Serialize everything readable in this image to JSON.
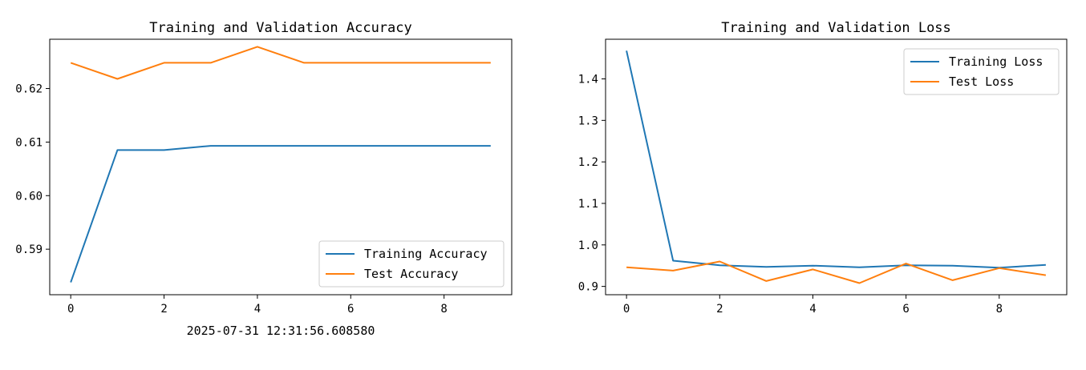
{
  "footer_text": "2025-07-31 12:31:56.608580",
  "chart_data": [
    {
      "type": "line",
      "title": "Training and Validation Accuracy",
      "xlabel": "",
      "ylabel": "",
      "x": [
        0,
        1,
        2,
        3,
        4,
        5,
        6,
        7,
        8,
        9
      ],
      "xticks": [
        "0",
        "2",
        "4",
        "6",
        "8"
      ],
      "yticks": [
        "0.59",
        "0.60",
        "0.61",
        "0.62"
      ],
      "xlim": [
        -0.45,
        9.45
      ],
      "ylim": [
        0.5815,
        0.6292
      ],
      "legend_position": "lower-right",
      "grid": false,
      "series": [
        {
          "name": "Training Accuracy",
          "color": "#1f77b4",
          "values": [
            0.5838,
            0.6085,
            0.6085,
            0.6093,
            0.6093,
            0.6093,
            0.6093,
            0.6093,
            0.6093,
            0.6093
          ]
        },
        {
          "name": "Test Accuracy",
          "color": "#ff7f0e",
          "values": [
            0.6248,
            0.6218,
            0.6248,
            0.6248,
            0.6278,
            0.6248,
            0.6248,
            0.6248,
            0.6248,
            0.6248
          ]
        }
      ]
    },
    {
      "type": "line",
      "title": "Training and Validation Loss",
      "xlabel": "",
      "ylabel": "",
      "x": [
        0,
        1,
        2,
        3,
        4,
        5,
        6,
        7,
        8,
        9
      ],
      "xticks": [
        "0",
        "2",
        "4",
        "6",
        "8"
      ],
      "yticks": [
        "0.9",
        "1.0",
        "1.1",
        "1.2",
        "1.3",
        "1.4"
      ],
      "xlim": [
        -0.45,
        9.45
      ],
      "ylim": [
        0.88,
        1.4955
      ],
      "legend_position": "upper-right",
      "grid": false,
      "series": [
        {
          "name": "Training Loss",
          "color": "#1f77b4",
          "values": [
            1.468,
            0.962,
            0.951,
            0.947,
            0.95,
            0.946,
            0.951,
            0.95,
            0.945,
            0.952
          ]
        },
        {
          "name": "Test Loss",
          "color": "#ff7f0e",
          "values": [
            0.946,
            0.938,
            0.96,
            0.913,
            0.941,
            0.908,
            0.955,
            0.915,
            0.944,
            0.927
          ]
        }
      ]
    }
  ]
}
